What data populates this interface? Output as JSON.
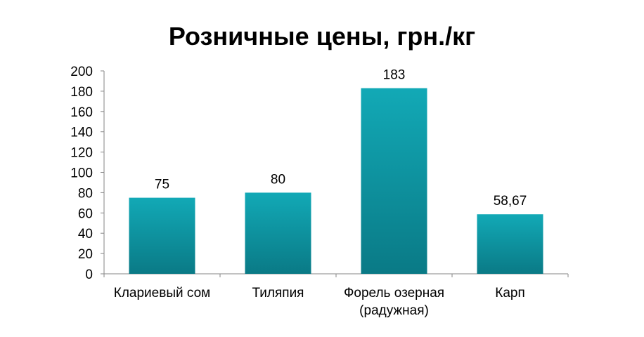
{
  "chart_data": {
    "type": "bar",
    "title": "Розничные цены, грн./кг",
    "categories": [
      [
        "Клариевый сом"
      ],
      [
        "Тиляпия"
      ],
      [
        "Форель озерная",
        "(радужная)"
      ],
      [
        "Карп"
      ]
    ],
    "values": [
      75,
      80,
      183,
      58.67
    ],
    "data_labels": [
      "75",
      "80",
      "183",
      "58,67"
    ],
    "ylim": [
      0,
      200
    ],
    "yticks": [
      0,
      20,
      40,
      60,
      80,
      100,
      120,
      140,
      160,
      180,
      200
    ],
    "xlabel": "",
    "ylabel": "",
    "grid": false,
    "legend": "none",
    "colors": {
      "bar_top": "#12a9b6",
      "bar_bottom": "#0a7a86",
      "axis": "#868686"
    }
  }
}
